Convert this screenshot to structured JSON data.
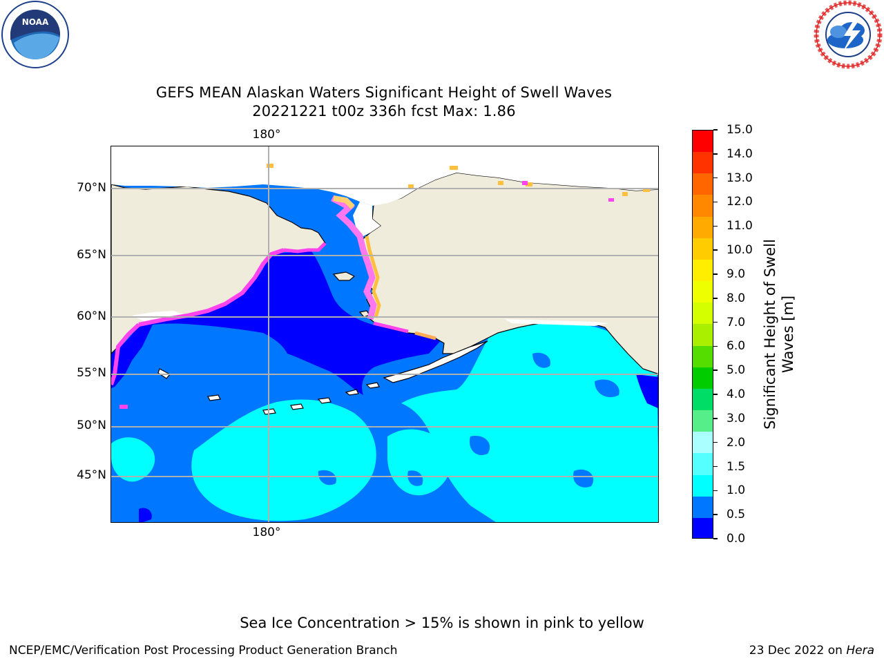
{
  "logos": {
    "noaa": {
      "text": "NOAA",
      "ring_text": "NATIONAL OCEANIC AND ATMOSPHERIC ADMINISTRATION · U.S. DEPARTMENT OF COMMERCE",
      "icon": "noaa-logo"
    },
    "nws": {
      "ring_text": "NATIONAL WEATHER SERVICE",
      "icon": "nws-logo"
    }
  },
  "title": {
    "line1": "GEFS MEAN Alaskan Waters Significant Height of Swell Waves",
    "line2": "20221221 t00z 336h fcst   Max: 1.86"
  },
  "map": {
    "lat_labels": [
      "70°N",
      "65°N",
      "60°N",
      "55°N",
      "50°N",
      "45°N"
    ],
    "lon_label_top": "180°",
    "lon_label_bottom": "180°",
    "colors": {
      "land": "#efecdc",
      "coast": "#000000",
      "grid": "#b0b0b0",
      "ice_pink": "#ff44ee",
      "ice_yellow": "#ffc040"
    }
  },
  "colorbar": {
    "title": "Significant Height of Swell Waves [m]",
    "ticks": [
      "15.0",
      "14.0",
      "13.0",
      "12.0",
      "11.0",
      "10.0",
      "9.0",
      "8.0",
      "7.0",
      "6.0",
      "5.0",
      "4.0",
      "3.0",
      "2.0",
      "1.5",
      "1.0",
      "0.5",
      "0.0"
    ],
    "colors": [
      "#ff0000",
      "#ff3300",
      "#ff6600",
      "#ff8800",
      "#ffaa00",
      "#ffcc00",
      "#ffee00",
      "#eeff00",
      "#d4ff00",
      "#aaee00",
      "#55dd00",
      "#00cc00",
      "#00dd66",
      "#55ee88",
      "#aaffff",
      "#55ffff",
      "#00ffff",
      "#0077ff",
      "#0000ff"
    ]
  },
  "note": "Sea Ice Concentration > 15% is shown in pink to yellow",
  "footer": {
    "left": "NCEP/EMC/Verification Post Processing Product Generation Branch",
    "right_date": "23 Dec 2022 on",
    "right_host": "Hera"
  }
}
